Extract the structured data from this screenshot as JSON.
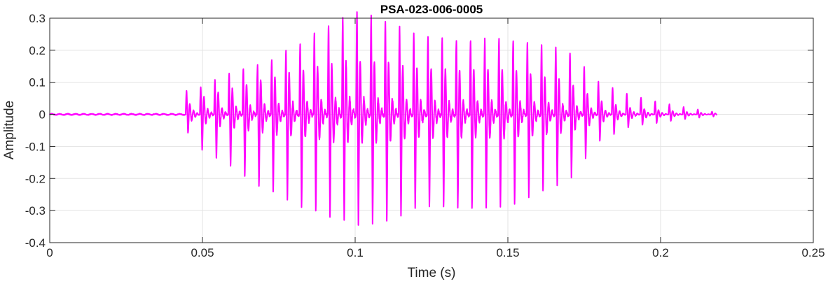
{
  "chart_data": {
    "type": "line",
    "title": "PSA-023-006-0005",
    "xlabel": "Time (s)",
    "ylabel": "Amplitude",
    "xlim": [
      0,
      0.25
    ],
    "ylim": [
      -0.4,
      0.3
    ],
    "x_ticks": [
      0,
      0.05,
      0.1,
      0.15,
      0.2,
      0.25
    ],
    "x_tick_labels": [
      "0",
      "0.05",
      "0.1",
      "0.15",
      "0.2",
      "0.25"
    ],
    "y_ticks": [
      -0.4,
      -0.3,
      -0.2,
      -0.1,
      0,
      0.1,
      0.2,
      0.3
    ],
    "y_tick_labels": [
      "-0.4",
      "-0.3",
      "-0.2",
      "-0.1",
      "0",
      "0.1",
      "0.2",
      "0.3"
    ],
    "grid": true,
    "legend": "none",
    "colors": {
      "line": "#ff00ff",
      "grid": "#e3e3e3",
      "axes": "#262626",
      "background": "#ffffff"
    },
    "series": [
      {
        "color": "#ff00ff",
        "signal_start": 0.0,
        "signal_end": 0.2185,
        "onset": 0.0445,
        "pitch_period": 0.00465,
        "x": [
          0.0445,
          0.05,
          0.06,
          0.07,
          0.08,
          0.09,
          0.0985,
          0.11,
          0.12,
          0.13,
          0.14,
          0.15,
          0.16,
          0.17,
          0.18,
          0.19,
          0.2,
          0.21,
          0.2185
        ],
        "peak_max": [
          0.06,
          0.07,
          0.11,
          0.13,
          0.17,
          0.22,
          0.26,
          0.24,
          0.2,
          0.19,
          0.19,
          0.19,
          0.18,
          0.16,
          0.08,
          0.05,
          0.03,
          0.015,
          0.005
        ],
        "trough_min": [
          -0.04,
          -0.1,
          -0.15,
          -0.21,
          -0.25,
          -0.28,
          -0.3,
          -0.3,
          -0.26,
          -0.26,
          -0.26,
          -0.26,
          -0.22,
          -0.18,
          -0.07,
          -0.03,
          -0.02,
          -0.01,
          -0.005
        ]
      }
    ]
  }
}
